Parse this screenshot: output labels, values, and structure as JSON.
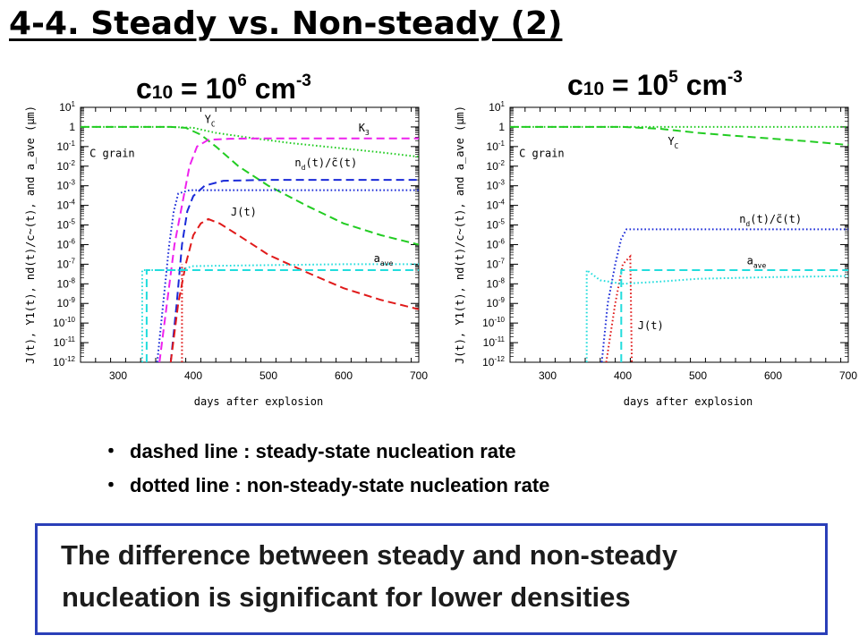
{
  "slide": {
    "title": "4-4. Steady vs. Non-steady (2)",
    "notes": [
      {
        "bullet": "・",
        "text": "dashed line : steady-state nucleation rate"
      },
      {
        "bullet": "・",
        "text": "dotted line  : non-steady-state nucleation rate"
      }
    ],
    "conclusion": [
      "The difference between steady and non-steady",
      "nucleation is significant for lower densities"
    ]
  },
  "panels": [
    {
      "title_base": "c",
      "title_sub": "10",
      "title_mid": " = 10",
      "title_exp": "6",
      "title_unit": " cm",
      "title_unit_exp": "-3"
    },
    {
      "title_base": "c",
      "title_sub": "10",
      "title_mid": " = 10",
      "title_exp": "5",
      "title_unit": " cm",
      "title_unit_exp": "-3"
    }
  ],
  "colors": {
    "yc": "#22cc22",
    "k3": "#ee22ee",
    "nd": "#1a2ad8",
    "j": "#e01a1a",
    "aave": "#22dddd",
    "conclusion_border": "#2a3fb8"
  },
  "chart_data": [
    {
      "type": "line",
      "title": "c10 = 10^6 cm^-3",
      "xlabel": "days after explosion",
      "ylabel": "J(t), Y1(t), nd(t)/c~(t), and a_ave (μm)",
      "xlim": [
        250,
        700
      ],
      "ylim": [
        1e-12,
        10
      ],
      "yscale": "log",
      "x_ticks": [
        300,
        400,
        500,
        600,
        700
      ],
      "y_ticks": [
        "10-12",
        "10-11",
        "10-10",
        "10-9",
        "10-8",
        "10-7",
        "10-6",
        "10-5",
        "10-4",
        "10-3",
        "10-2",
        "10-1",
        "1",
        "101"
      ],
      "annotations": [
        "C grain",
        "Yc",
        "K3",
        "nd(t)/c~(t)",
        "J(t)",
        "aave"
      ],
      "series": [
        {
          "name": "Yc",
          "color_key": "yc",
          "style": "dashed",
          "points": [
            [
              250,
              1
            ],
            [
              330,
              1
            ],
            [
              370,
              1
            ],
            [
              390,
              0.9
            ],
            [
              410,
              0.4
            ],
            [
              430,
              0.1
            ],
            [
              460,
              0.01
            ],
            [
              500,
              0.001
            ],
            [
              550,
              0.0001
            ],
            [
              600,
              1.2e-05
            ],
            [
              650,
              3e-06
            ],
            [
              700,
              1e-06
            ]
          ]
        },
        {
          "name": "Yc",
          "color_key": "yc",
          "style": "dotted",
          "points": [
            [
              250,
              1
            ],
            [
              330,
              1
            ],
            [
              370,
              1
            ],
            [
              400,
              0.9
            ],
            [
              430,
              0.5
            ],
            [
              470,
              0.3
            ],
            [
              530,
              0.15
            ],
            [
              600,
              0.08
            ],
            [
              650,
              0.05
            ],
            [
              700,
              0.03
            ]
          ]
        },
        {
          "name": "K3",
          "color_key": "k3",
          "style": "dashed",
          "points": [
            [
              355,
              1e-12
            ],
            [
              365,
              1e-09
            ],
            [
              375,
              1e-06
            ],
            [
              385,
              0.0001
            ],
            [
              395,
              0.01
            ],
            [
              405,
              0.1
            ],
            [
              420,
              0.22
            ],
            [
              450,
              0.25
            ],
            [
              500,
              0.26
            ],
            [
              600,
              0.26
            ],
            [
              700,
              0.26
            ]
          ]
        },
        {
          "name": "nd(t)/c~(t)",
          "color_key": "nd",
          "style": "dashed",
          "points": [
            [
              370,
              1e-12
            ],
            [
              378,
              1e-09
            ],
            [
              385,
              1e-06
            ],
            [
              392,
              5e-05
            ],
            [
              400,
              0.0003
            ],
            [
              415,
              0.001
            ],
            [
              440,
              0.0018
            ],
            [
              500,
              0.002
            ],
            [
              600,
              0.002
            ],
            [
              700,
              0.002
            ]
          ]
        },
        {
          "name": "nd(t)/c~(t)",
          "color_key": "nd",
          "style": "dotted",
          "points": [
            [
              352,
              1e-12
            ],
            [
              360,
              1e-09
            ],
            [
              368,
              1e-06
            ],
            [
              374,
              5e-05
            ],
            [
              380,
              0.0004
            ],
            [
              395,
              0.0006
            ],
            [
              500,
              0.0006
            ],
            [
              700,
              0.0006
            ]
          ]
        },
        {
          "name": "J(t)",
          "color_key": "j",
          "style": "dashed",
          "points": [
            [
              370,
              1e-12
            ],
            [
              380,
              1e-09
            ],
            [
              390,
              1e-07
            ],
            [
              400,
              3e-06
            ],
            [
              410,
              1.2e-05
            ],
            [
              420,
              2e-05
            ],
            [
              435,
              1.2e-05
            ],
            [
              460,
              3e-06
            ],
            [
              500,
              3e-07
            ],
            [
              550,
              4e-08
            ],
            [
              600,
              6e-09
            ],
            [
              650,
              1.5e-09
            ],
            [
              700,
              5e-10
            ]
          ]
        },
        {
          "name": "J(t)",
          "color_key": "j",
          "style": "dotted",
          "points": [
            [
              385,
              1e-12
            ],
            [
              385,
              1e-07
            ]
          ]
        },
        {
          "name": "aave",
          "color_key": "aave",
          "style": "dashed",
          "points": [
            [
              338,
              1e-12
            ],
            [
              338,
              5e-08
            ],
            [
              370,
              5e-08
            ],
            [
              380,
              5e-08
            ],
            [
              450,
              5e-08
            ],
            [
              550,
              5e-08
            ],
            [
              700,
              5e-08
            ]
          ]
        },
        {
          "name": "aave",
          "color_key": "aave",
          "style": "dotted",
          "points": [
            [
              332,
              1e-12
            ],
            [
              332,
              5e-08
            ],
            [
              380,
              5e-08
            ],
            [
              400,
              8e-08
            ],
            [
              500,
              9e-08
            ],
            [
              600,
              1e-07
            ],
            [
              700,
              1e-07
            ]
          ]
        }
      ]
    },
    {
      "type": "line",
      "title": "c10 = 10^5 cm^-3",
      "xlabel": "days after explosion",
      "ylabel": "J(t), Y1(t), nd(t)/c~(t), and a_ave (μm)",
      "xlim": [
        250,
        700
      ],
      "ylim": [
        1e-12,
        10
      ],
      "yscale": "log",
      "x_ticks": [
        300,
        400,
        500,
        600,
        700
      ],
      "y_ticks": [
        "10-12",
        "10-11",
        "10-10",
        "10-9",
        "10-8",
        "10-7",
        "10-6",
        "10-5",
        "10-4",
        "10-3",
        "10-2",
        "10-1",
        "1",
        "101"
      ],
      "annotations": [
        "C grain",
        "Yc",
        "nd(t)/c~(t)",
        "J(t)",
        "aave"
      ],
      "series": [
        {
          "name": "Yc",
          "color_key": "yc",
          "style": "dashed",
          "points": [
            [
              250,
              1
            ],
            [
              400,
              1
            ],
            [
              450,
              0.8
            ],
            [
              500,
              0.5
            ],
            [
              550,
              0.35
            ],
            [
              600,
              0.25
            ],
            [
              650,
              0.18
            ],
            [
              700,
              0.12
            ]
          ]
        },
        {
          "name": "Yc",
          "color_key": "yc",
          "style": "dotted",
          "points": [
            [
              250,
              1
            ],
            [
              700,
              1
            ]
          ]
        },
        {
          "name": "nd(t)/c~(t)",
          "color_key": "nd",
          "style": "dotted",
          "points": [
            [
              372,
              1e-12
            ],
            [
              380,
              1e-09
            ],
            [
              390,
              1e-07
            ],
            [
              398,
              2e-06
            ],
            [
              405,
              6e-06
            ],
            [
              450,
              6e-06
            ],
            [
              700,
              6e-06
            ]
          ]
        },
        {
          "name": "J(t)",
          "color_key": "j",
          "style": "dotted",
          "points": [
            [
              378,
              1e-12
            ],
            [
              390,
              1e-09
            ],
            [
              400,
              1e-07
            ],
            [
              410,
              2.5e-07
            ],
            [
              412,
              1e-12
            ]
          ]
        },
        {
          "name": "aave",
          "color_key": "aave",
          "style": "dashed",
          "points": [
            [
              398,
              1e-12
            ],
            [
              398,
              5e-08
            ],
            [
              700,
              5e-08
            ]
          ]
        },
        {
          "name": "aave",
          "color_key": "aave",
          "style": "dotted",
          "points": [
            [
              352,
              1e-12
            ],
            [
              352,
              5e-08
            ],
            [
              370,
              1.5e-08
            ],
            [
              400,
              1e-08
            ],
            [
              450,
              1.3e-08
            ],
            [
              500,
              1.8e-08
            ],
            [
              600,
              2.2e-08
            ],
            [
              700,
              2.5e-08
            ]
          ]
        }
      ]
    }
  ]
}
